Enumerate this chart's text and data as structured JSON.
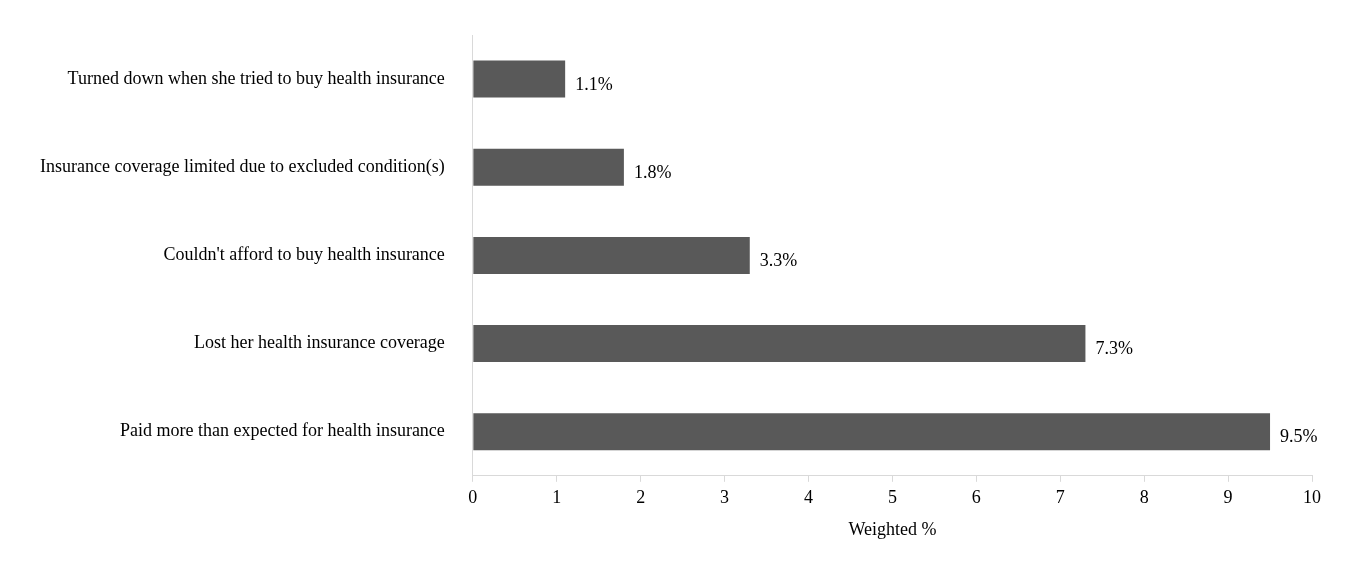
{
  "chart_data": {
    "type": "bar",
    "orientation": "horizontal",
    "xlabel": "Weighted %",
    "categories": [
      "Turned down when she tried to buy health insurance",
      "Insurance coverage limited due to excluded condition(s)",
      "Couldn't afford to buy health insurance",
      "Lost her health insurance coverage",
      "Paid more than expected for health insurance"
    ],
    "values": [
      1.1,
      1.8,
      3.3,
      7.3,
      9.5
    ],
    "value_labels": [
      "1.1%",
      "1.8%",
      "3.3%",
      "7.3%",
      "9.5%"
    ],
    "color": "#595959",
    "xlim": [
      0,
      10
    ],
    "xticks": [
      0,
      1,
      2,
      3,
      4,
      5,
      6,
      7,
      8,
      9,
      10
    ],
    "grid": false,
    "legend": false
  }
}
